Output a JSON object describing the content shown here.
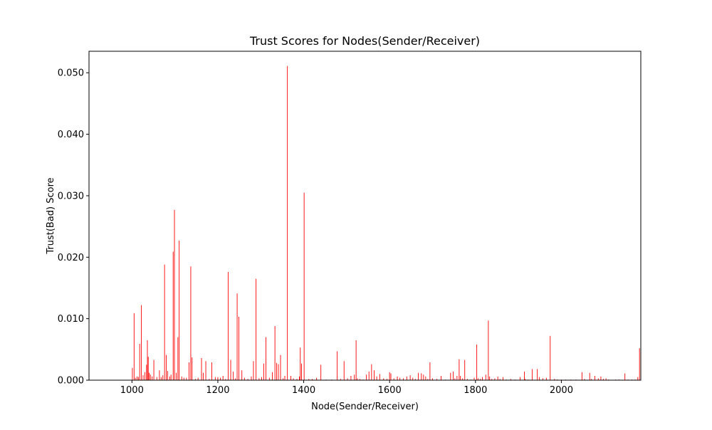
{
  "chart_data": {
    "type": "bar",
    "title": "Trust Scores for Nodes(Sender/Receiver)",
    "xlabel": "Node(Sender/Receiver)",
    "ylabel": "Trust(Bad) Score",
    "xlim": [
      900,
      2185
    ],
    "ylim": [
      0,
      0.0535
    ],
    "x_ticks": [
      1000,
      1200,
      1400,
      1600,
      1800,
      2000
    ],
    "x_tick_labels": [
      "1000",
      "1200",
      "1400",
      "1600",
      "1800",
      "2000"
    ],
    "y_ticks": [
      0,
      0.01,
      0.02,
      0.03,
      0.04,
      0.05
    ],
    "y_tick_labels": [
      "0.000",
      "0.010",
      "0.020",
      "0.030",
      "0.040",
      "0.050"
    ],
    "grid": false,
    "legend": "none",
    "bar_color": "#ff0000",
    "series": [
      {
        "x": [
          1001,
          1005,
          1008,
          1012,
          1015,
          1018,
          1022,
          1026,
          1030,
          1034,
          1036,
          1038,
          1040,
          1043,
          1047,
          1051,
          1058,
          1064,
          1068,
          1072,
          1076,
          1080,
          1083,
          1088,
          1091,
          1096,
          1099,
          1103,
          1107,
          1110,
          1116,
          1121,
          1127,
          1133,
          1137,
          1140,
          1148,
          1154,
          1162,
          1166,
          1172,
          1180,
          1186,
          1194,
          1200,
          1206,
          1212,
          1218,
          1224,
          1230,
          1236,
          1241,
          1245,
          1249,
          1256,
          1262,
          1270,
          1278,
          1283,
          1289,
          1296,
          1302,
          1307,
          1312,
          1320,
          1327,
          1333,
          1337,
          1341,
          1346,
          1352,
          1356,
          1362,
          1370,
          1376,
          1384,
          1390,
          1392,
          1395,
          1401,
          1412,
          1420,
          1430,
          1440,
          1452,
          1465,
          1478,
          1486,
          1494,
          1502,
          1510,
          1518,
          1522,
          1525,
          1531,
          1538,
          1546,
          1552,
          1558,
          1564,
          1570,
          1577,
          1586,
          1594,
          1600,
          1603,
          1610,
          1618,
          1624,
          1632,
          1640,
          1648,
          1654,
          1660,
          1667,
          1674,
          1679,
          1684,
          1689,
          1694,
          1700,
          1710,
          1720,
          1730,
          1742,
          1748,
          1752,
          1757,
          1762,
          1765,
          1770,
          1775,
          1781,
          1790,
          1797,
          1803,
          1806,
          1811,
          1816,
          1824,
          1830,
          1833,
          1838,
          1845,
          1852,
          1857,
          1864,
          1872,
          1882,
          1892,
          1904,
          1914,
          1916,
          1922,
          1932,
          1944,
          1949,
          1957,
          1965,
          1974,
          1984,
          1990,
          2000,
          2010,
          2022,
          2034,
          2048,
          2054,
          2066,
          2070,
          2078,
          2086,
          2092,
          2098,
          2104,
          2110,
          2126,
          2134,
          2148,
          2155,
          2164,
          2172,
          2178,
          2182
        ],
        "values": [
          0.002,
          0.0109,
          0.0004,
          0.0006,
          0.0005,
          0.0059,
          0.0122,
          0.0008,
          0.0013,
          0.0025,
          0.0065,
          0.0038,
          0.0012,
          0.0009,
          0.0006,
          0.0033,
          0.0005,
          0.0016,
          0.0005,
          0.0008,
          0.0188,
          0.0041,
          0.0015,
          0.0006,
          0.0009,
          0.0209,
          0.0277,
          0.0012,
          0.007,
          0.0227,
          0.0006,
          0.0004,
          0.0004,
          0.0029,
          0.0185,
          0.0037,
          0.0002,
          0.0004,
          0.0036,
          0.0012,
          0.0031,
          0.0002,
          0.0029,
          0.0005,
          0.0005,
          0.0004,
          0.0007,
          0.0002,
          0.0176,
          0.0033,
          0.0014,
          0.0003,
          0.0141,
          0.0103,
          0.0016,
          0.0004,
          0.0002,
          0.0006,
          0.0031,
          0.0165,
          0.0003,
          0.0005,
          0.0027,
          0.007,
          0.0004,
          0.0013,
          0.0088,
          0.0028,
          0.0026,
          0.0041,
          0.0003,
          0.0007,
          0.0511,
          0.0007,
          0.0003,
          0.0002,
          0.0006,
          0.0053,
          0.0027,
          0.0305,
          0.0002,
          0.0002,
          0.0004,
          0.0025,
          0.0001,
          0.0001,
          0.0047,
          0.0002,
          0.0031,
          0.0003,
          0.0007,
          0.0009,
          0.0065,
          0.0003,
          0.0002,
          0.0001,
          0.0009,
          0.0014,
          0.0026,
          0.0016,
          0.0006,
          0.001,
          0.0003,
          0.0002,
          0.0013,
          0.0011,
          0.0003,
          0.0006,
          0.0004,
          0.0003,
          0.0006,
          0.0008,
          0.0004,
          0.0002,
          0.0012,
          0.0011,
          0.0009,
          0.0006,
          0.0002,
          0.0029,
          0.0003,
          0.0002,
          0.0007,
          0.0001,
          0.0012,
          0.0014,
          0.0003,
          0.0007,
          0.0034,
          0.0007,
          0.0003,
          0.0033,
          0.0002,
          0.0001,
          0.0004,
          0.0058,
          0.0003,
          0.0002,
          0.0005,
          0.0009,
          0.0097,
          0.0006,
          0.0002,
          0.0003,
          0.0006,
          0.0002,
          0.0005,
          0.0001,
          0.0002,
          0.0001,
          0.0005,
          0.0014,
          0.0002,
          0.0001,
          0.0018,
          0.0018,
          0.0005,
          0.0003,
          0.0004,
          0.0072,
          0.0002,
          0.0001,
          0.0001,
          0.0001,
          0.0001,
          0.0001,
          0.0013,
          0.0002,
          0.0012,
          0.0002,
          0.0007,
          0.0003,
          0.0006,
          0.0002,
          0.0003,
          0.0001,
          0.0001,
          0.0001,
          0.0011,
          0.0001,
          0.0001,
          0.0001,
          0.0005,
          0.0052
        ]
      }
    ]
  }
}
